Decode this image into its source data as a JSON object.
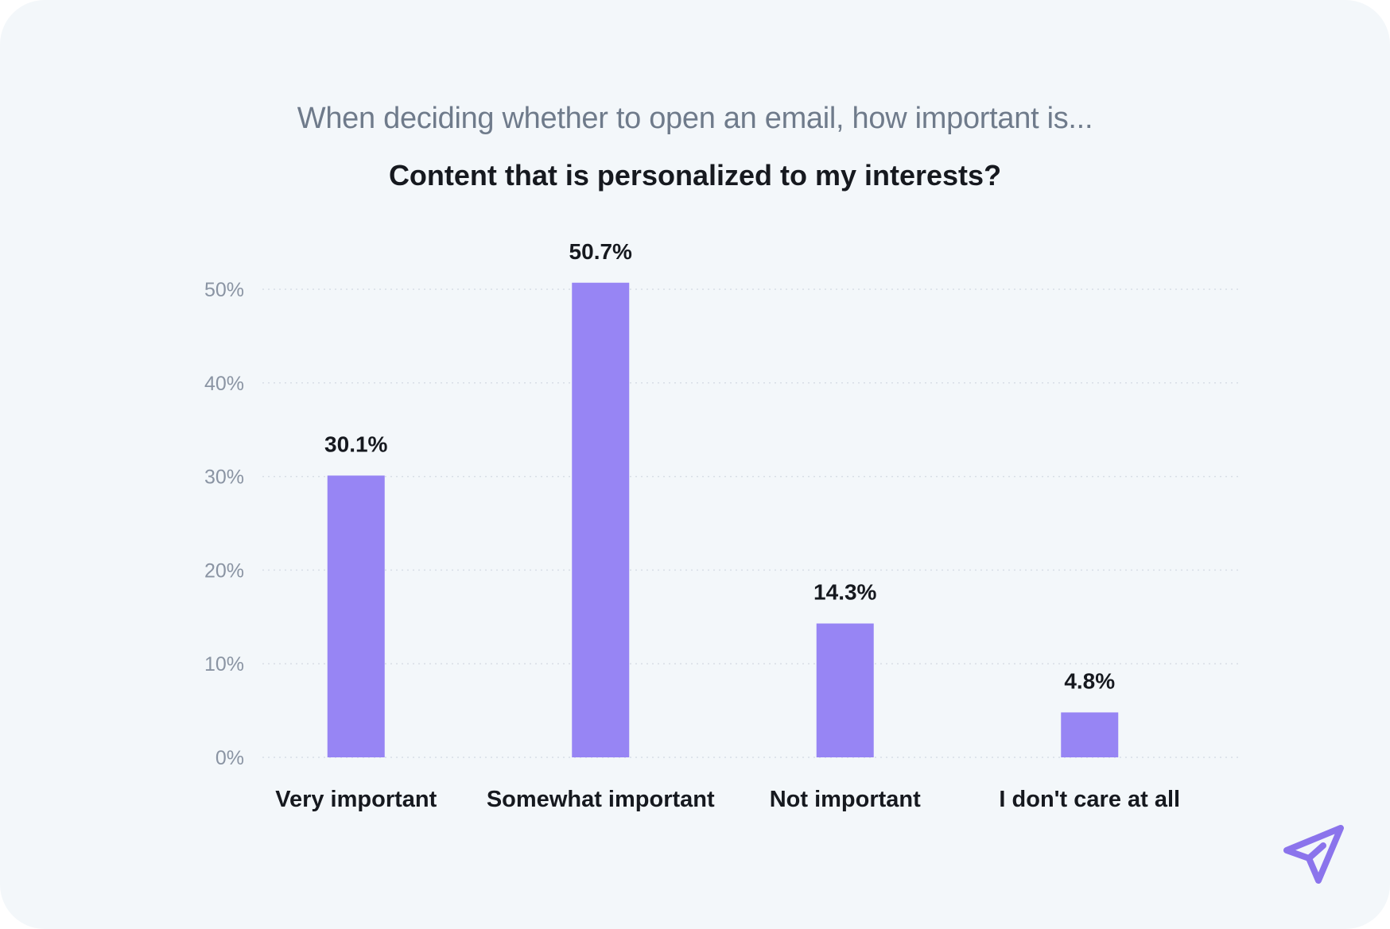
{
  "subtitle": "When deciding whether to open an email, how important is...",
  "title": "Content that is personalized to my interests?",
  "brand_icon": "paper-plane-icon",
  "colors": {
    "bar": "#9785f4",
    "brand": "#8b74ec",
    "grid": "#d8dee6",
    "tick": "#8a94a3",
    "label": "#16191f"
  },
  "chart_data": {
    "type": "bar",
    "title": "Content that is personalized to my interests?",
    "subtitle": "When deciding whether to open an email, how important is...",
    "categories": [
      "Very important",
      "Somewhat important",
      "Not important",
      "I don't care at all"
    ],
    "values": [
      30.1,
      50.7,
      14.3,
      4.8
    ],
    "value_labels": [
      "30.1%",
      "50.7%",
      "14.3%",
      "4.8%"
    ],
    "yticks": [
      0,
      10,
      20,
      30,
      40,
      50
    ],
    "ytick_labels": [
      "0%",
      "10%",
      "20%",
      "30%",
      "40%",
      "50%"
    ],
    "ylim": [
      0,
      50
    ],
    "xlabel": "",
    "ylabel": "",
    "grid": true,
    "legend": "none"
  }
}
